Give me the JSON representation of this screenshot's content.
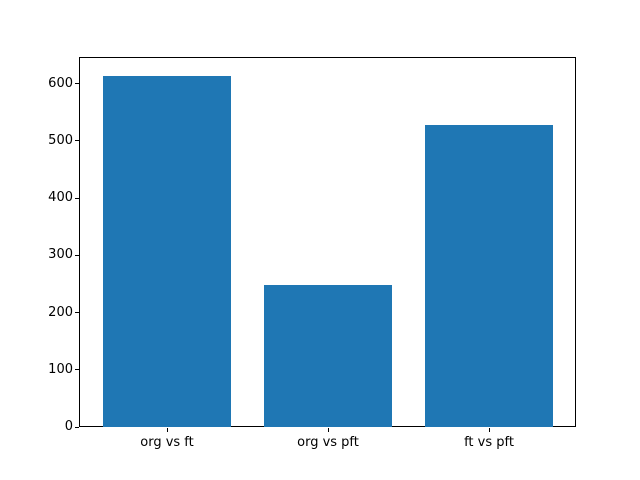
{
  "figure": {
    "kind": "matplotlib-bar-chart"
  },
  "chart_data": {
    "type": "bar",
    "categories": [
      "org vs ft",
      "org vs pft",
      "ft vs pft"
    ],
    "values": [
      614,
      248,
      527
    ],
    "title": "",
    "xlabel": "",
    "ylabel": "",
    "ylim": [
      0,
      644.7
    ],
    "xlim": [
      -0.54,
      2.54
    ],
    "bar_width": 0.8,
    "yticks": [
      0,
      100,
      200,
      300,
      400,
      500,
      600
    ],
    "grid": false,
    "legend": null,
    "bar_color": "#1f77b4",
    "spine_color": "#000000",
    "text_color": "#000000",
    "background_color": "#ffffff"
  }
}
